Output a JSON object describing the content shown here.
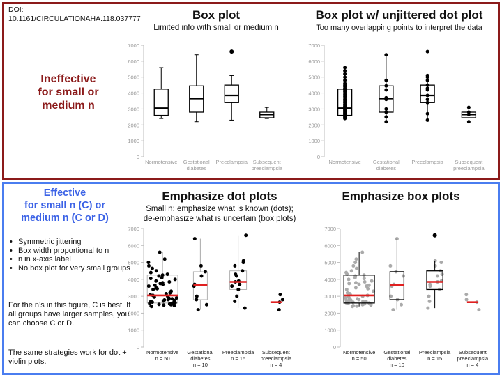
{
  "doi": "DOI:\n10.1161/CIRCULATIONAHA.118.037777",
  "colors": {
    "top_border": "#8b1a1a",
    "bottom_border": "#4a7df0",
    "top_side_text": "#8b1a1a",
    "bottom_side_text": "#3b62e6",
    "median_red": "#e02020",
    "dot_gray": "#aaaaaa"
  },
  "top_side": {
    "heading": "Ineffective\nfor small or\nmedium n"
  },
  "bottom_side": {
    "heading": "Effective\nfor small n (C) or\nmedium n (C or D)",
    "bullets": [
      "Symmetric jittering",
      "Box width proportional to n",
      "n in x-axis label",
      "No box plot for very small groups"
    ],
    "para1": "For the n’s in this figure, C is best. If all groups have larger samples, you can choose C or D.",
    "para2": "The same strategies work for dot + violin plots."
  },
  "panels": [
    {
      "title": "Box plot",
      "subtitle": "Limited info with small or medium n"
    },
    {
      "title": "Box plot w/ unjittered dot plot",
      "subtitle": "Too many overlapping points to interpret the data"
    },
    {
      "title": "Emphasize dot plots",
      "subtitle": "Small n: emphasize what is known (dots);\nde-emphasize what is uncertain (box plots)"
    },
    {
      "title": "Emphasize box plots",
      "subtitle": ""
    }
  ],
  "chart_data": [
    {
      "type": "box",
      "title": "Box plot",
      "categories": [
        "Normotensive",
        "Gestational\ndiabetes",
        "Preeclampsia",
        "Subsequent\npreeclampsia"
      ],
      "ylim": [
        0,
        7000
      ],
      "yticks": [
        0,
        1000,
        2000,
        3000,
        4000,
        5000,
        6000,
        7000
      ],
      "boxes": [
        {
          "min": 2400,
          "q1": 2600,
          "median": 3050,
          "q3": 4250,
          "max": 5600
        },
        {
          "min": 2200,
          "q1": 2800,
          "median": 3650,
          "q3": 4450,
          "max": 6400
        },
        {
          "min": 2300,
          "q1": 3400,
          "median": 3850,
          "q3": 4500,
          "max": 5100,
          "outliers": [
            6600
          ]
        },
        {
          "min": 2400,
          "q1": 2450,
          "median": 2650,
          "q3": 2800,
          "max": 3100
        }
      ]
    },
    {
      "type": "box+dot",
      "title": "Box plot w/ unjittered dot plot",
      "categories": [
        "Normotensive",
        "Gestational\ndiabetes",
        "Preeclampsia",
        "Subsequent\npreeclampsia"
      ],
      "ylim": [
        0,
        7000
      ],
      "yticks": [
        0,
        1000,
        2000,
        3000,
        4000,
        5000,
        6000,
        7000
      ],
      "boxes": [
        {
          "min": 2400,
          "q1": 2600,
          "median": 3050,
          "q3": 4250,
          "max": 5600
        },
        {
          "min": 2200,
          "q1": 2800,
          "median": 3650,
          "q3": 4450,
          "max": 6400
        },
        {
          "min": 2300,
          "q1": 3400,
          "median": 3850,
          "q3": 4500,
          "max": 5100
        },
        {
          "min": 2400,
          "q1": 2450,
          "median": 2650,
          "q3": 2800,
          "max": 3100
        }
      ],
      "points": [
        [
          2400,
          2450,
          2500,
          2550,
          2600,
          2650,
          2700,
          2750,
          2800,
          2850,
          2900,
          2950,
          3000,
          3050,
          3100,
          3150,
          3200,
          3300,
          3400,
          3500,
          3600,
          3700,
          3800,
          3900,
          4000,
          4100,
          4200,
          4250,
          4300,
          4400,
          4500,
          4600,
          4800,
          5000,
          5200,
          5400,
          5600
        ],
        [
          2200,
          2500,
          2800,
          3000,
          3600,
          3700,
          4200,
          4450,
          4800,
          6400
        ],
        [
          2300,
          2700,
          3400,
          3600,
          3850,
          4200,
          4300,
          4500,
          4800,
          5000,
          5100,
          6600
        ],
        [
          2200,
          2650,
          2800,
          3100
        ]
      ]
    },
    {
      "type": "jittered dot + box",
      "title": "Emphasize dot plots",
      "categories": [
        "Normotensive\nn = 50",
        "Gestational\ndiabetes\nn = 10",
        "Preeclampsia\nn = 15",
        "Subsequent\npreeclampsia\nn = 4"
      ],
      "ylim": [
        0,
        7000
      ],
      "yticks": [
        0,
        1000,
        2000,
        3000,
        4000,
        5000,
        6000,
        7000
      ],
      "boxes": [
        {
          "min": 2400,
          "q1": 2600,
          "median": 3050,
          "q3": 4250,
          "max": 5600
        },
        {
          "min": 2200,
          "q1": 2800,
          "median": 3650,
          "q3": 4450,
          "max": 6400
        },
        {
          "min": 2300,
          "q1": 3400,
          "median": 3850,
          "q3": 4500,
          "max": 6600
        },
        {
          "median": 2650
        }
      ],
      "points": [
        [
          2400,
          2420,
          2450,
          2480,
          2500,
          2520,
          2550,
          2580,
          2600,
          2620,
          2650,
          2680,
          2700,
          2720,
          2750,
          2780,
          2800,
          2850,
          2880,
          2900,
          2950,
          3000,
          3050,
          3100,
          3150,
          3200,
          3300,
          3400,
          3450,
          3500,
          3600,
          3650,
          3700,
          3750,
          3800,
          3850,
          3900,
          4000,
          4050,
          4100,
          4200,
          4250,
          4300,
          4400,
          4500,
          4650,
          4800,
          5000,
          5200,
          5600
        ],
        [
          2200,
          2500,
          2800,
          3000,
          3600,
          3700,
          4200,
          4450,
          4800,
          6400
        ],
        [
          2300,
          2700,
          3000,
          3400,
          3600,
          3700,
          3850,
          3900,
          4200,
          4300,
          4500,
          4800,
          5000,
          5100,
          6600
        ],
        [
          2200,
          2650,
          2800,
          3100
        ]
      ]
    },
    {
      "type": "box + jittered dot",
      "title": "Emphasize box plots",
      "categories": [
        "Normotensive\nn = 50",
        "Gestational\ndiabetes\nn = 10",
        "Preeclampsia\nn = 15",
        "Subsequent\npreeclampsia\nn = 4"
      ],
      "ylim": [
        0,
        7000
      ],
      "yticks": [
        0,
        1000,
        2000,
        3000,
        4000,
        5000,
        6000,
        7000
      ],
      "boxes": [
        {
          "min": 2400,
          "q1": 2600,
          "median": 3050,
          "q3": 4250,
          "max": 5600
        },
        {
          "min": 2200,
          "q1": 2800,
          "median": 3650,
          "q3": 4450,
          "max": 6400
        },
        {
          "min": 2300,
          "q1": 3400,
          "median": 3850,
          "q3": 4500,
          "max": 5100,
          "outliers": [
            6600
          ]
        },
        {
          "median": 2650
        }
      ],
      "points": [
        [
          2400,
          2420,
          2450,
          2480,
          2500,
          2520,
          2550,
          2580,
          2600,
          2620,
          2650,
          2680,
          2700,
          2720,
          2750,
          2780,
          2800,
          2850,
          2880,
          2900,
          2950,
          3000,
          3050,
          3100,
          3150,
          3200,
          3300,
          3400,
          3450,
          3500,
          3600,
          3650,
          3700,
          3750,
          3800,
          3850,
          3900,
          4000,
          4050,
          4100,
          4200,
          4250,
          4300,
          4400,
          4500,
          4650,
          4800,
          5000,
          5200,
          5600
        ],
        [
          2200,
          2500,
          2800,
          3000,
          3600,
          3700,
          4200,
          4450,
          4800,
          6400
        ],
        [
          2300,
          2700,
          3000,
          3400,
          3600,
          3700,
          3850,
          3900,
          4200,
          4300,
          4500,
          4800,
          5000,
          5100
        ],
        [
          2200,
          2650,
          2800,
          3100
        ]
      ]
    }
  ]
}
